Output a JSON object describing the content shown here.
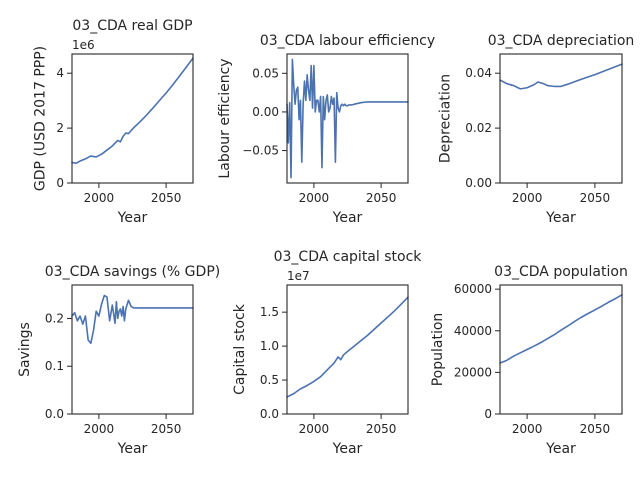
{
  "figure": {
    "background": "#ffffff"
  },
  "chart_data": [
    {
      "type": "line",
      "title": "03_CDA real GDP",
      "xlabel": "Year",
      "ylabel": "GDP (USD 2017 PPP)",
      "offset_label": "1e6",
      "xlim": [
        1980,
        2070
      ],
      "ylim": [
        0,
        4.7
      ],
      "xticks": [
        2000,
        2050
      ],
      "yticks": [
        0,
        2,
        4
      ],
      "ytick_labels": [
        "0",
        "2",
        "4"
      ],
      "color": "#4c72b0",
      "series": [
        {
          "x": [
            1980,
            1983,
            1986,
            1990,
            1994,
            1998,
            2002,
            2006,
            2010,
            2014,
            2016,
            2018,
            2020,
            2022,
            2026,
            2030,
            2035,
            2040,
            2045,
            2050,
            2055,
            2060,
            2065,
            2070
          ],
          "y": [
            0.75,
            0.72,
            0.8,
            0.88,
            0.98,
            0.95,
            1.05,
            1.2,
            1.35,
            1.55,
            1.5,
            1.7,
            1.82,
            1.8,
            2.02,
            2.2,
            2.45,
            2.72,
            3.0,
            3.28,
            3.58,
            3.9,
            4.22,
            4.55
          ]
        }
      ]
    },
    {
      "type": "line",
      "title": "03_CDA labour efficiency",
      "xlabel": "Year",
      "ylabel": "Labour efficiency",
      "xlim": [
        1980,
        2070
      ],
      "ylim": [
        -0.092,
        0.075
      ],
      "xticks": [
        2000,
        2050
      ],
      "yticks": [
        -0.05,
        0.0,
        0.05
      ],
      "ytick_labels": [
        "−0.05",
        "0.00",
        "0.05"
      ],
      "color": "#4c72b0",
      "series": [
        {
          "x": [
            1980,
            1981,
            1982,
            1983,
            1984,
            1985,
            1986,
            1987,
            1988,
            1989,
            1990,
            1991,
            1992,
            1993,
            1994,
            1995,
            1996,
            1997,
            1998,
            1999,
            2000,
            2001,
            2002,
            2003,
            2004,
            2005,
            2006,
            2007,
            2008,
            2009,
            2010,
            2011,
            2012,
            2013,
            2014,
            2015,
            2016,
            2017,
            2018,
            2019,
            2020,
            2021,
            2022,
            2023,
            2024,
            2025,
            2026,
            2027,
            2028,
            2030,
            2035,
            2040,
            2045,
            2050,
            2055,
            2060,
            2065,
            2070
          ],
          "y": [
            0.01,
            -0.04,
            0.012,
            -0.085,
            0.068,
            0.035,
            0.01,
            0.028,
            0.032,
            -0.01,
            0.015,
            -0.065,
            0.01,
            0.04,
            0.015,
            0.048,
            0.028,
            0.015,
            0.06,
            0.005,
            0.06,
            0.0,
            0.015,
            0.015,
            0.0,
            0.02,
            -0.072,
            0.02,
            -0.01,
            0.015,
            0.022,
            0.0,
            0.005,
            0.02,
            0.01,
            0.018,
            -0.065,
            0.025,
            0.005,
            0.0,
            0.008,
            0.01,
            0.008,
            0.01,
            0.008,
            0.008,
            0.009,
            0.009,
            0.009,
            0.01,
            0.012,
            0.013,
            0.013,
            0.013,
            0.013,
            0.013,
            0.013,
            0.013
          ]
        }
      ]
    },
    {
      "type": "line",
      "title": "03_CDA depreciation",
      "xlabel": "Year",
      "ylabel": "Depreciation",
      "xlim": [
        1980,
        2070
      ],
      "ylim": [
        0,
        0.047
      ],
      "xticks": [
        2000,
        2050
      ],
      "yticks": [
        0,
        0.02,
        0.04
      ],
      "ytick_labels": [
        "0.00",
        "0.02",
        "0.04"
      ],
      "color": "#4c72b0",
      "series": [
        {
          "x": [
            1980,
            1985,
            1990,
            1995,
            2000,
            2005,
            2008,
            2012,
            2015,
            2020,
            2025,
            2030,
            2040,
            2050,
            2060,
            2070
          ],
          "y": [
            0.0375,
            0.0362,
            0.0355,
            0.0343,
            0.0347,
            0.0358,
            0.0368,
            0.0362,
            0.0355,
            0.0352,
            0.0352,
            0.036,
            0.0378,
            0.0395,
            0.0414,
            0.0433
          ]
        }
      ]
    },
    {
      "type": "line",
      "title": "03_CDA savings (% GDP)",
      "xlabel": "Year",
      "ylabel": "Savings",
      "xlim": [
        1980,
        2070
      ],
      "ylim": [
        0,
        0.27
      ],
      "xticks": [
        2000,
        2050
      ],
      "yticks": [
        0,
        0.1,
        0.2
      ],
      "ytick_labels": [
        "0.0",
        "0.1",
        "0.2"
      ],
      "color": "#4c72b0",
      "series": [
        {
          "x": [
            1980,
            1982,
            1984,
            1986,
            1988,
            1990,
            1992,
            1994,
            1996,
            1998,
            2000,
            2002,
            2004,
            2006,
            2008,
            2010,
            2012,
            2013,
            2014,
            2015,
            2016,
            2017,
            2018,
            2019,
            2020,
            2022,
            2024,
            2026,
            2030,
            2040,
            2050,
            2060,
            2070
          ],
          "y": [
            0.205,
            0.212,
            0.195,
            0.205,
            0.188,
            0.205,
            0.155,
            0.148,
            0.175,
            0.215,
            0.205,
            0.23,
            0.248,
            0.245,
            0.195,
            0.228,
            0.19,
            0.235,
            0.2,
            0.215,
            0.22,
            0.205,
            0.225,
            0.195,
            0.22,
            0.238,
            0.225,
            0.222,
            0.222,
            0.222,
            0.222,
            0.222,
            0.222
          ]
        }
      ]
    },
    {
      "type": "line",
      "title": "03_CDA capital stock",
      "xlabel": "Year",
      "ylabel": "Capital stock",
      "offset_label": "1e7",
      "xlim": [
        1980,
        2070
      ],
      "ylim": [
        0,
        1.9
      ],
      "xticks": [
        2000,
        2050
      ],
      "yticks": [
        0,
        0.5,
        1.0,
        1.5
      ],
      "ytick_labels": [
        "0.0",
        "0.5",
        "1.0",
        "1.5"
      ],
      "color": "#4c72b0",
      "series": [
        {
          "x": [
            1980,
            1985,
            1990,
            1995,
            2000,
            2005,
            2010,
            2015,
            2018,
            2020,
            2022,
            2025,
            2030,
            2035,
            2040,
            2045,
            2050,
            2055,
            2060,
            2065,
            2070
          ],
          "y": [
            0.25,
            0.3,
            0.37,
            0.42,
            0.48,
            0.55,
            0.65,
            0.75,
            0.84,
            0.8,
            0.87,
            0.92,
            1.0,
            1.08,
            1.16,
            1.25,
            1.34,
            1.43,
            1.52,
            1.62,
            1.72
          ]
        }
      ]
    },
    {
      "type": "line",
      "title": "03_CDA population",
      "xlabel": "Year",
      "ylabel": "Population",
      "xlim": [
        1980,
        2070
      ],
      "ylim": [
        0,
        62000
      ],
      "xticks": [
        2000,
        2050
      ],
      "yticks": [
        0,
        20000,
        40000,
        60000
      ],
      "ytick_labels": [
        "0",
        "20000",
        "40000",
        "60000"
      ],
      "color": "#4c72b0",
      "series": [
        {
          "x": [
            1980,
            1985,
            1990,
            1995,
            2000,
            2005,
            2010,
            2015,
            2020,
            2025,
            2030,
            2035,
            2040,
            2045,
            2050,
            2055,
            2060,
            2065,
            2070
          ],
          "y": [
            24500,
            25800,
            27800,
            29400,
            31000,
            32600,
            34300,
            36200,
            38100,
            40300,
            42300,
            44500,
            46500,
            48300,
            50000,
            51800,
            53700,
            55400,
            57300
          ]
        }
      ]
    }
  ]
}
